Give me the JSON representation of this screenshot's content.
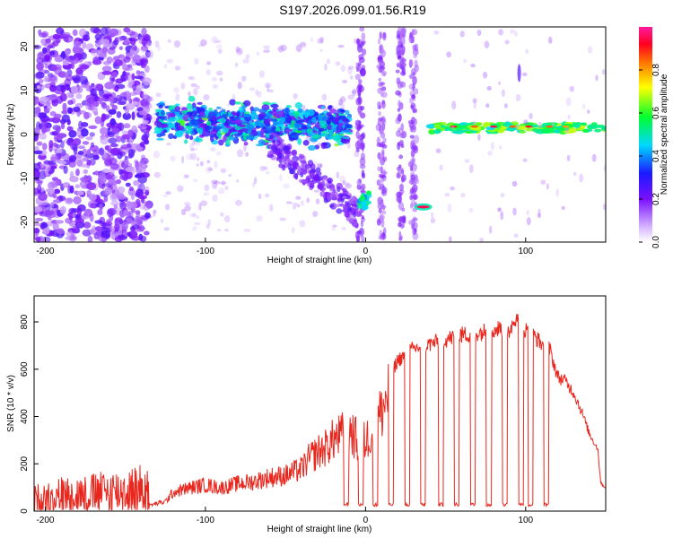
{
  "title": "S197.2026.099.01.56.R19",
  "chart_data": [
    {
      "type": "heatmap",
      "title": "S197.2026.099.01.56.R19",
      "xlabel": "Height of straight line (km)",
      "ylabel": "Frequency (Hz)",
      "xlim": [
        -207,
        150
      ],
      "ylim": [
        -24.5,
        24.5
      ],
      "xticks": [
        -200,
        -100,
        0,
        100
      ],
      "yticks": [
        -20,
        -10,
        0,
        10,
        20
      ],
      "colorbar": {
        "label": "Normalized spectral amplitude",
        "range": [
          0,
          1
        ],
        "ticks": [
          0.0,
          0.2,
          0.4,
          0.6,
          0.8
        ],
        "colormap": "rainbow (white-violet-blue-cyan-green-yellow-red-magenta)"
      },
      "features": [
        {
          "desc": "scattered low-amplitude speckle",
          "x_range": [
            -207,
            -135
          ],
          "freq_range": [
            -24,
            24
          ],
          "amplitude": 0.15
        },
        {
          "desc": "broad band near 0-5 Hz",
          "x_range": [
            -130,
            -10
          ],
          "freq_center": 3,
          "amplitude": 0.5
        },
        {
          "desc": "diagonal descending streak",
          "x_range": [
            -60,
            -5
          ],
          "freq_range": [
            -20,
            -2
          ],
          "amplitude": 0.2
        },
        {
          "desc": "blob",
          "x": -1,
          "freq": -15,
          "amplitude": 0.55
        },
        {
          "desc": "strong narrow line",
          "x": 36,
          "freq": -16.5,
          "amplitude": 0.95
        },
        {
          "desc": "narrow line near 1.5 Hz",
          "x_range": [
            40,
            150
          ],
          "freq_center": 1.5,
          "amplitude": 0.8
        }
      ]
    },
    {
      "type": "line",
      "xlabel": "Height of straight line (km)",
      "ylabel": "SNR (10 * v/v)",
      "xlim": [
        -207,
        150
      ],
      "ylim": [
        0,
        910
      ],
      "xticks": [
        -200,
        -100,
        0,
        100
      ],
      "yticks": [
        0,
        200,
        400,
        600,
        800
      ],
      "color": "#e8281e",
      "series": [
        {
          "name": "SNR",
          "x": [
            -207,
            -190,
            -170,
            -150,
            -135,
            -125,
            -120,
            -110,
            -100,
            -90,
            -80,
            -70,
            -60,
            -50,
            -40,
            -35,
            -30,
            -25,
            -20,
            -15,
            -10,
            -5,
            0,
            5,
            10,
            15,
            20,
            30,
            40,
            50,
            60,
            70,
            80,
            85,
            90,
            95,
            100,
            105,
            110,
            115,
            120,
            125,
            130,
            135,
            140,
            145,
            147,
            150
          ],
          "values": [
            15,
            20,
            22,
            25,
            28,
            45,
            90,
            110,
            125,
            110,
            130,
            140,
            160,
            170,
            200,
            250,
            280,
            300,
            340,
            360,
            390,
            330,
            330,
            400,
            470,
            580,
            650,
            700,
            720,
            740,
            760,
            770,
            780,
            790,
            780,
            860,
            780,
            760,
            720,
            700,
            580,
            560,
            510,
            430,
            330,
            270,
            120,
            100
          ],
          "dips": {
            "x": [
              -12,
              -3,
              6,
              16,
              26,
              36,
              47,
              57,
              67,
              77,
              87,
              97,
              103,
              113
            ],
            "value": 20
          }
        }
      ]
    }
  ]
}
